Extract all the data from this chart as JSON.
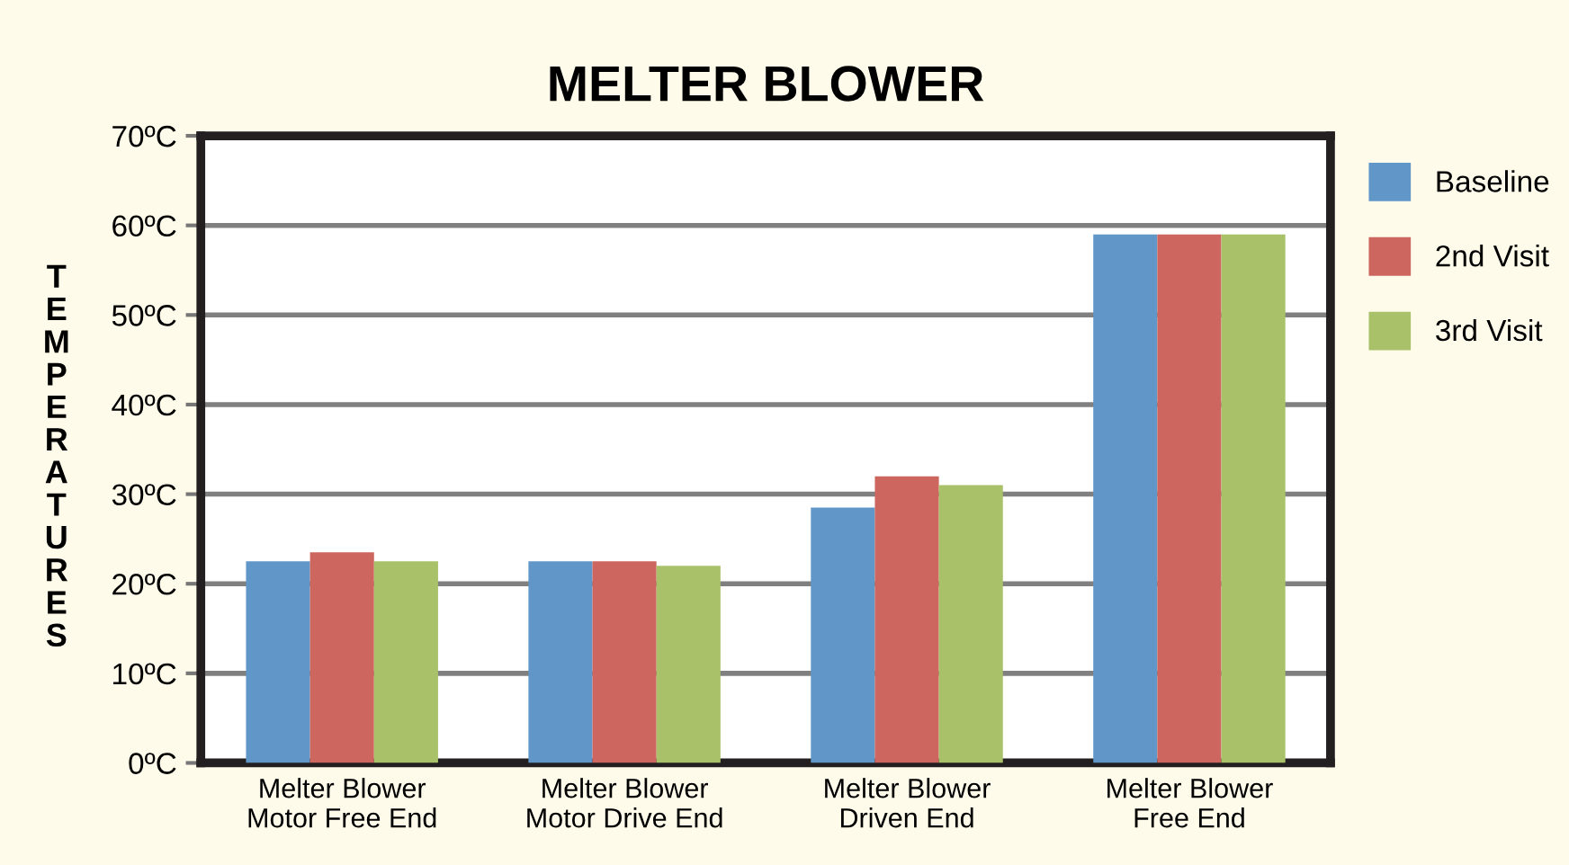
{
  "chart_data": {
    "type": "bar",
    "title": "MELTER BLOWER",
    "ylabel": "TEMPERATURES",
    "categories": [
      "Melter Blower\nMotor Free End",
      "Melter Blower\nMotor Drive End",
      "Melter Blower\nDriven End",
      "Melter Blower\nFree End"
    ],
    "series": [
      {
        "name": "Baseline",
        "color": "#6196c8",
        "values": [
          22.5,
          22.5,
          28.5,
          59
        ]
      },
      {
        "name": "2nd Visit",
        "color": "#cc665f",
        "values": [
          23.5,
          22.5,
          32,
          59
        ]
      },
      {
        "name": "3rd Visit",
        "color": "#a9c26a",
        "values": [
          22.5,
          22,
          31,
          59
        ]
      }
    ],
    "ylim": [
      0,
      70
    ],
    "yticks": [
      {
        "value": 0,
        "label": "0ºC"
      },
      {
        "value": 10,
        "label": "10ºC"
      },
      {
        "value": 20,
        "label": "20ºC"
      },
      {
        "value": 30,
        "label": "30ºC"
      },
      {
        "value": 40,
        "label": "40ºC"
      },
      {
        "value": 50,
        "label": "50ºC"
      },
      {
        "value": 60,
        "label": "60ºC"
      },
      {
        "value": 70,
        "label": "70ºC"
      }
    ],
    "grid": "y",
    "legend": "right"
  }
}
